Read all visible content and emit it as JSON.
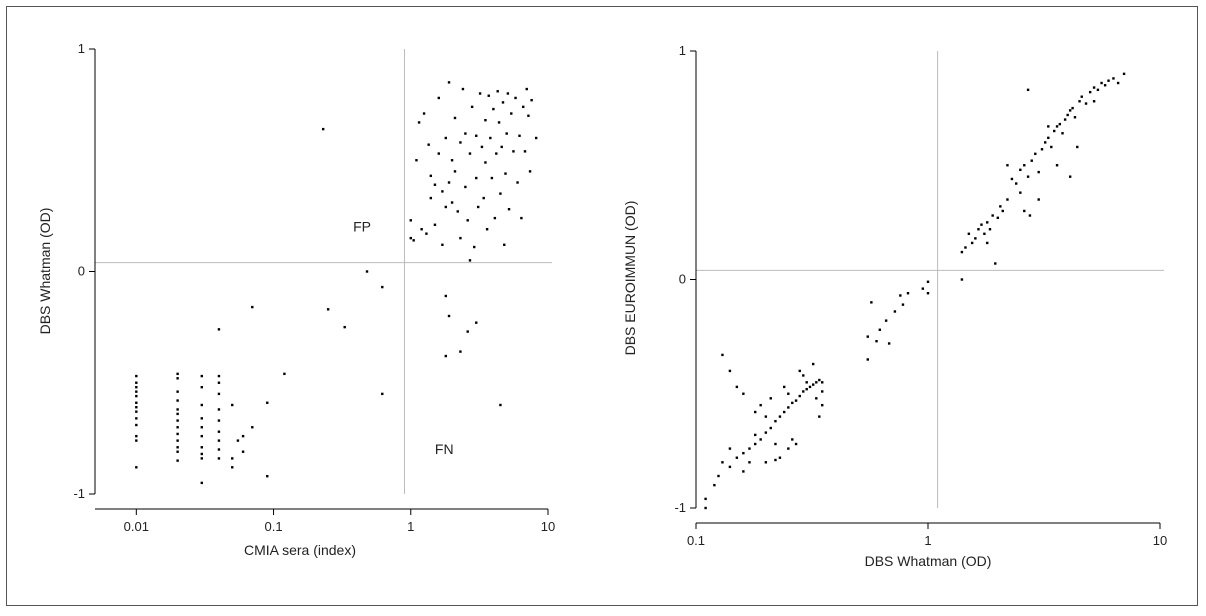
{
  "chart_data": [
    {
      "type": "scatter",
      "title": "",
      "xlabel": "CMIA sera (index)",
      "ylabel": "DBS Whatman (OD)",
      "xscale": "log",
      "xlim": [
        0.005,
        10
      ],
      "ylim": [
        -1,
        1
      ],
      "x_ticks": [
        0.01,
        0.1,
        1,
        10
      ],
      "x_tick_labels": [
        "0.01",
        "0.1",
        "1",
        "10"
      ],
      "y_ticks": [
        -1,
        0,
        1
      ],
      "y_tick_labels": [
        "-1",
        "0",
        "1"
      ],
      "reference_lines": {
        "x": 0.9,
        "y": 0.04
      },
      "annotations": [
        {
          "text": "FP",
          "x": 0.38,
          "y": 0.18
        },
        {
          "text": "FN",
          "x": 1.5,
          "y": -0.82
        }
      ],
      "points": [
        [
          0.01,
          -0.47
        ],
        [
          0.01,
          -0.5
        ],
        [
          0.01,
          -0.52
        ],
        [
          0.01,
          -0.54
        ],
        [
          0.01,
          -0.56
        ],
        [
          0.01,
          -0.59
        ],
        [
          0.01,
          -0.61
        ],
        [
          0.01,
          -0.63
        ],
        [
          0.01,
          -0.66
        ],
        [
          0.01,
          -0.69
        ],
        [
          0.01,
          -0.74
        ],
        [
          0.01,
          -0.76
        ],
        [
          0.01,
          -0.88
        ],
        [
          0.02,
          -0.46
        ],
        [
          0.02,
          -0.48
        ],
        [
          0.02,
          -0.54
        ],
        [
          0.02,
          -0.58
        ],
        [
          0.02,
          -0.62
        ],
        [
          0.02,
          -0.64
        ],
        [
          0.02,
          -0.67
        ],
        [
          0.02,
          -0.7
        ],
        [
          0.02,
          -0.73
        ],
        [
          0.02,
          -0.76
        ],
        [
          0.02,
          -0.79
        ],
        [
          0.02,
          -0.81
        ],
        [
          0.02,
          -0.85
        ],
        [
          0.03,
          -0.47
        ],
        [
          0.03,
          -0.52
        ],
        [
          0.03,
          -0.6
        ],
        [
          0.03,
          -0.66
        ],
        [
          0.03,
          -0.7
        ],
        [
          0.03,
          -0.74
        ],
        [
          0.03,
          -0.79
        ],
        [
          0.03,
          -0.82
        ],
        [
          0.03,
          -0.84
        ],
        [
          0.03,
          -0.95
        ],
        [
          0.04,
          -0.26
        ],
        [
          0.04,
          -0.47
        ],
        [
          0.04,
          -0.5
        ],
        [
          0.04,
          -0.55
        ],
        [
          0.04,
          -0.62
        ],
        [
          0.04,
          -0.67
        ],
        [
          0.04,
          -0.72
        ],
        [
          0.04,
          -0.76
        ],
        [
          0.04,
          -0.8
        ],
        [
          0.04,
          -0.84
        ],
        [
          0.05,
          -0.6
        ],
        [
          0.05,
          -0.84
        ],
        [
          0.05,
          -0.88
        ],
        [
          0.055,
          -0.76
        ],
        [
          0.06,
          -0.74
        ],
        [
          0.06,
          -0.81
        ],
        [
          0.07,
          -0.7
        ],
        [
          0.07,
          -0.16
        ],
        [
          0.09,
          -0.59
        ],
        [
          0.09,
          -0.92
        ],
        [
          0.12,
          -0.46
        ],
        [
          0.23,
          0.64
        ],
        [
          0.25,
          -0.17
        ],
        [
          0.33,
          -0.25
        ],
        [
          0.48,
          0.0
        ],
        [
          0.62,
          -0.07
        ],
        [
          0.62,
          -0.55
        ],
        [
          1.0,
          0.23
        ],
        [
          1.0,
          0.15
        ],
        [
          1.05,
          0.14
        ],
        [
          1.1,
          0.5
        ],
        [
          1.15,
          0.67
        ],
        [
          1.2,
          0.19
        ],
        [
          1.25,
          0.71
        ],
        [
          1.3,
          0.17
        ],
        [
          1.35,
          0.57
        ],
        [
          1.4,
          0.43
        ],
        [
          1.4,
          0.33
        ],
        [
          1.5,
          0.21
        ],
        [
          1.5,
          0.39
        ],
        [
          1.6,
          0.53
        ],
        [
          1.6,
          0.78
        ],
        [
          1.7,
          0.36
        ],
        [
          1.7,
          0.12
        ],
        [
          1.8,
          0.29
        ],
        [
          1.8,
          0.6
        ],
        [
          1.9,
          0.85
        ],
        [
          1.9,
          0.4
        ],
        [
          2.0,
          0.5
        ],
        [
          2.0,
          0.31
        ],
        [
          2.1,
          0.69
        ],
        [
          2.1,
          0.45
        ],
        [
          2.2,
          0.27
        ],
        [
          2.3,
          0.58
        ],
        [
          2.3,
          0.15
        ],
        [
          2.4,
          0.82
        ],
        [
          2.5,
          0.62
        ],
        [
          2.5,
          0.38
        ],
        [
          2.6,
          0.23
        ],
        [
          2.7,
          0.53
        ],
        [
          2.7,
          0.05
        ],
        [
          2.8,
          0.74
        ],
        [
          2.9,
          0.11
        ],
        [
          3.0,
          0.42
        ],
        [
          3.0,
          0.61
        ],
        [
          3.1,
          0.29
        ],
        [
          3.2,
          0.8
        ],
        [
          3.3,
          0.56
        ],
        [
          3.4,
          0.33
        ],
        [
          3.5,
          0.68
        ],
        [
          3.5,
          0.49
        ],
        [
          3.6,
          0.19
        ],
        [
          3.7,
          0.79
        ],
        [
          3.8,
          0.6
        ],
        [
          3.9,
          0.42
        ],
        [
          4.0,
          0.73
        ],
        [
          4.1,
          0.24
        ],
        [
          4.2,
          0.53
        ],
        [
          4.3,
          0.81
        ],
        [
          4.4,
          0.67
        ],
        [
          4.5,
          0.35
        ],
        [
          4.6,
          0.56
        ],
        [
          4.7,
          0.76
        ],
        [
          4.8,
          0.12
        ],
        [
          4.9,
          0.44
        ],
        [
          5.0,
          0.62
        ],
        [
          5.1,
          0.8
        ],
        [
          5.2,
          0.28
        ],
        [
          5.4,
          0.71
        ],
        [
          5.6,
          0.54
        ],
        [
          5.8,
          0.78
        ],
        [
          6.0,
          0.4
        ],
        [
          6.2,
          0.61
        ],
        [
          6.4,
          0.24
        ],
        [
          6.6,
          0.74
        ],
        [
          6.8,
          0.54
        ],
        [
          7.0,
          0.82
        ],
        [
          7.2,
          0.7
        ],
        [
          7.4,
          0.45
        ],
        [
          7.6,
          0.77
        ],
        [
          8.2,
          0.6
        ],
        [
          1.8,
          -0.11
        ],
        [
          1.9,
          -0.2
        ],
        [
          2.3,
          -0.36
        ],
        [
          2.6,
          -0.27
        ],
        [
          3.0,
          -0.23
        ],
        [
          4.5,
          -0.6
        ],
        [
          1.8,
          -0.38
        ]
      ]
    },
    {
      "type": "scatter",
      "title": "",
      "xlabel": "DBS Whatman (OD)",
      "ylabel": "DBS EUROIMMUN (OD)",
      "xscale": "log",
      "xlim": [
        0.1,
        10
      ],
      "ylim": [
        -1,
        1
      ],
      "x_ticks": [
        0.1,
        1,
        10
      ],
      "x_tick_labels": [
        "0.1",
        "1",
        "10"
      ],
      "y_ticks": [
        -1,
        0,
        1
      ],
      "y_tick_labels": [
        "-1",
        "0",
        "1"
      ],
      "reference_lines": {
        "x": 1.1,
        "y": 0.04
      },
      "points": [
        [
          0.11,
          -1.0
        ],
        [
          0.11,
          -0.96
        ],
        [
          0.12,
          -0.9
        ],
        [
          0.125,
          -0.86
        ],
        [
          0.13,
          -0.8
        ],
        [
          0.14,
          -0.82
        ],
        [
          0.14,
          -0.74
        ],
        [
          0.15,
          -0.78
        ],
        [
          0.16,
          -0.76
        ],
        [
          0.16,
          -0.84
        ],
        [
          0.17,
          -0.74
        ],
        [
          0.17,
          -0.8
        ],
        [
          0.18,
          -0.72
        ],
        [
          0.18,
          -0.68
        ],
        [
          0.19,
          -0.7
        ],
        [
          0.2,
          -0.67
        ],
        [
          0.2,
          -0.6
        ],
        [
          0.21,
          -0.65
        ],
        [
          0.22,
          -0.62
        ],
        [
          0.22,
          -0.72
        ],
        [
          0.23,
          -0.6
        ],
        [
          0.23,
          -0.78
        ],
        [
          0.24,
          -0.58
        ],
        [
          0.25,
          -0.56
        ],
        [
          0.25,
          -0.74
        ],
        [
          0.26,
          -0.54
        ],
        [
          0.27,
          -0.53
        ],
        [
          0.27,
          -0.72
        ],
        [
          0.28,
          -0.51
        ],
        [
          0.29,
          -0.49
        ],
        [
          0.3,
          -0.48
        ],
        [
          0.31,
          -0.47
        ],
        [
          0.32,
          -0.46
        ],
        [
          0.33,
          -0.45
        ],
        [
          0.34,
          -0.44
        ],
        [
          0.35,
          -0.45
        ],
        [
          0.13,
          -0.33
        ],
        [
          0.14,
          -0.4
        ],
        [
          0.15,
          -0.47
        ],
        [
          0.16,
          -0.5
        ],
        [
          0.18,
          -0.58
        ],
        [
          0.19,
          -0.55
        ],
        [
          0.2,
          -0.8
        ],
        [
          0.21,
          -0.52
        ],
        [
          0.22,
          -0.79
        ],
        [
          0.24,
          -0.47
        ],
        [
          0.25,
          -0.5
        ],
        [
          0.26,
          -0.7
        ],
        [
          0.28,
          -0.4
        ],
        [
          0.29,
          -0.42
        ],
        [
          0.3,
          -0.45
        ],
        [
          0.32,
          -0.37
        ],
        [
          0.33,
          -0.52
        ],
        [
          0.34,
          -0.6
        ],
        [
          0.35,
          -0.55
        ],
        [
          0.35,
          -0.49
        ],
        [
          0.55,
          -0.25
        ],
        [
          0.55,
          -0.35
        ],
        [
          0.57,
          -0.1
        ],
        [
          0.6,
          -0.27
        ],
        [
          0.62,
          -0.22
        ],
        [
          0.66,
          -0.18
        ],
        [
          0.68,
          -0.28
        ],
        [
          0.72,
          -0.14
        ],
        [
          0.76,
          -0.07
        ],
        [
          0.78,
          -0.11
        ],
        [
          0.82,
          -0.06
        ],
        [
          0.95,
          -0.04
        ],
        [
          1.0,
          -0.01
        ],
        [
          1.0,
          -0.06
        ],
        [
          1.4,
          0.12
        ],
        [
          1.4,
          0.0
        ],
        [
          1.45,
          0.14
        ],
        [
          1.5,
          0.2
        ],
        [
          1.55,
          0.16
        ],
        [
          1.6,
          0.18
        ],
        [
          1.65,
          0.22
        ],
        [
          1.7,
          0.24
        ],
        [
          1.75,
          0.2
        ],
        [
          1.8,
          0.25
        ],
        [
          1.85,
          0.22
        ],
        [
          1.9,
          0.28
        ],
        [
          1.95,
          0.07
        ],
        [
          2.0,
          0.27
        ],
        [
          2.05,
          0.32
        ],
        [
          2.1,
          0.3
        ],
        [
          2.2,
          0.35
        ],
        [
          2.3,
          0.44
        ],
        [
          2.4,
          0.42
        ],
        [
          2.5,
          0.48
        ],
        [
          2.5,
          0.38
        ],
        [
          2.6,
          0.5
        ],
        [
          2.7,
          0.45
        ],
        [
          2.75,
          0.28
        ],
        [
          2.8,
          0.52
        ],
        [
          2.9,
          0.55
        ],
        [
          3.0,
          0.47
        ],
        [
          3.1,
          0.57
        ],
        [
          3.2,
          0.6
        ],
        [
          3.3,
          0.62
        ],
        [
          3.4,
          0.58
        ],
        [
          3.5,
          0.65
        ],
        [
          3.6,
          0.67
        ],
        [
          3.7,
          0.68
        ],
        [
          3.8,
          0.64
        ],
        [
          3.9,
          0.7
        ],
        [
          4.0,
          0.72
        ],
        [
          4.1,
          0.74
        ],
        [
          4.2,
          0.75
        ],
        [
          4.3,
          0.71
        ],
        [
          4.5,
          0.78
        ],
        [
          4.6,
          0.8
        ],
        [
          4.8,
          0.77
        ],
        [
          5.0,
          0.82
        ],
        [
          5.2,
          0.84
        ],
        [
          5.4,
          0.83
        ],
        [
          5.6,
          0.86
        ],
        [
          5.8,
          0.85
        ],
        [
          6.0,
          0.87
        ],
        [
          6.3,
          0.88
        ],
        [
          6.6,
          0.86
        ],
        [
          7.0,
          0.9
        ],
        [
          2.7,
          0.83
        ],
        [
          3.0,
          0.35
        ],
        [
          2.6,
          0.3
        ],
        [
          3.3,
          0.67
        ],
        [
          3.6,
          0.5
        ],
        [
          4.1,
          0.45
        ],
        [
          4.4,
          0.58
        ],
        [
          5.2,
          0.78
        ],
        [
          2.2,
          0.5
        ],
        [
          1.8,
          0.16
        ]
      ]
    }
  ]
}
